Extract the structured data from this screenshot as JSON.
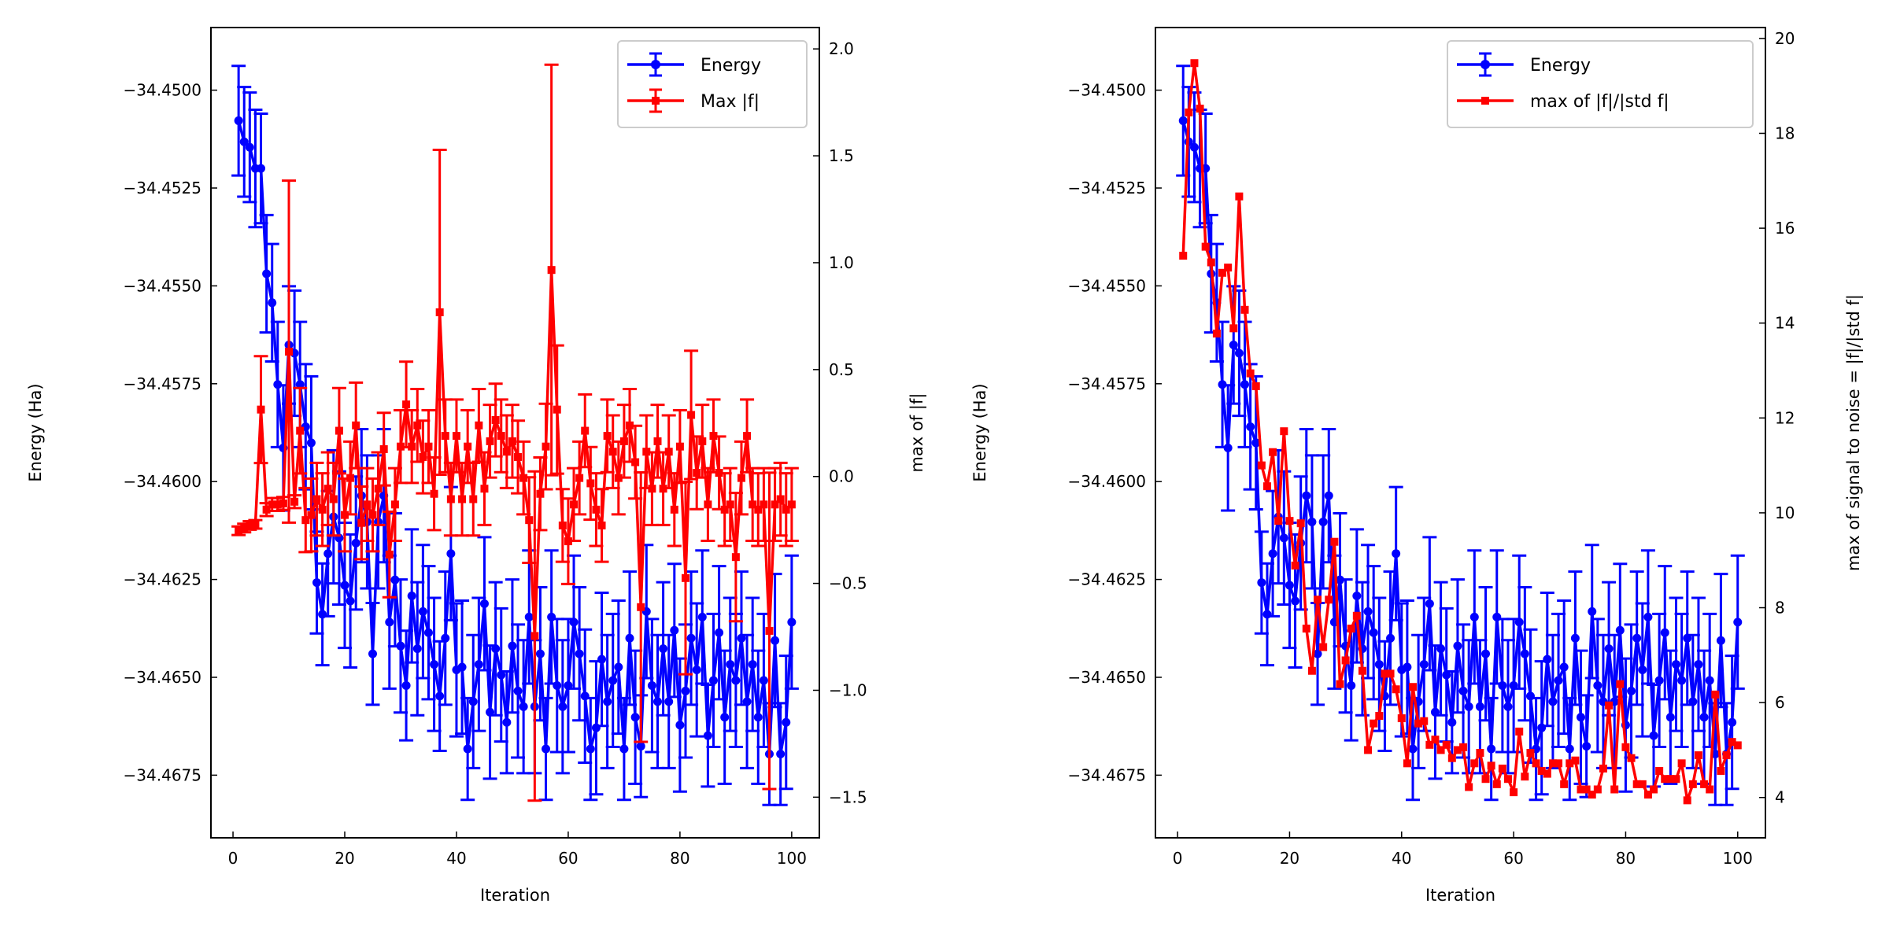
{
  "colors": {
    "energy": "#0000ff",
    "force": "#ff0000"
  },
  "chart_data": [
    {
      "type": "line",
      "panel": "left",
      "xlabel": "Iteration",
      "ylabel": "Energy (Ha)",
      "ylabel_right": "max of |f|",
      "xlim": [
        -3.95,
        104.95
      ],
      "ylim": [
        -34.4691,
        -34.4484
      ],
      "ylim_right": [
        -1.69,
        2.1
      ],
      "xticks": [
        0,
        20,
        40,
        60,
        80,
        100
      ],
      "xtick_labels": [
        "0",
        "20",
        "40",
        "60",
        "80",
        "100"
      ],
      "yticks": [
        -34.45,
        -34.4525,
        -34.455,
        -34.4575,
        -34.46,
        -34.4625,
        -34.465,
        -34.4675
      ],
      "ytick_labels": [
        "−34.4500",
        "−34.4525",
        "−34.4550",
        "−34.4575",
        "−34.4600",
        "−34.4625",
        "−34.4650",
        "−34.4675"
      ],
      "yticks_right": [
        2.0,
        1.5,
        1.0,
        0.5,
        0.0,
        -0.5,
        -1.0,
        -1.5
      ],
      "ytick_labels_right": [
        "2.0",
        "1.5",
        "1.0",
        "0.5",
        "0.0",
        "−0.5",
        "−1.0",
        "−1.5"
      ],
      "legend": {
        "placement": "top-right",
        "entries": [
          "Energy",
          "Max |f|"
        ]
      },
      "grid": false,
      "series": [
        {
          "name": "Energy",
          "axis": "left",
          "marker": "circle",
          "errorbars": true,
          "color_key": "energy",
          "y": [
            -34.45078,
            -34.45132,
            -34.45146,
            -34.452,
            -34.452,
            -34.45469,
            -34.45543,
            -34.45752,
            -34.45914,
            -34.45651,
            -34.45672,
            -34.45752,
            -34.4586,
            -34.45901,
            -34.46258,
            -34.46339,
            -34.46184,
            -34.4609,
            -34.46144,
            -34.46265,
            -34.46305,
            -34.46157,
            -34.46036,
            -34.46103,
            -34.4644,
            -34.46103,
            -34.46036,
            -34.46359,
            -34.46251,
            -34.4642,
            -34.46521,
            -34.46292,
            -34.46427,
            -34.46332,
            -34.46386,
            -34.46467,
            -34.46548,
            -34.464,
            -34.46184,
            -34.46481,
            -34.46474,
            -34.46683,
            -34.46562,
            -34.46467,
            -34.46312,
            -34.46589,
            -34.46427,
            -34.46494,
            -34.46615,
            -34.4642,
            -34.46535,
            -34.46575,
            -34.46346,
            -34.46575,
            -34.4644,
            -34.46683,
            -34.46346,
            -34.46521,
            -34.46575,
            -34.46521,
            -34.46359,
            -34.4644,
            -34.46548,
            -34.46683,
            -34.46629,
            -34.46454,
            -34.46562,
            -34.46508,
            -34.46474,
            -34.46683,
            -34.464,
            -34.46602,
            -34.46676,
            -34.46332,
            -34.46521,
            -34.46562,
            -34.46427,
            -34.46562,
            -34.4638,
            -34.46622,
            -34.46535,
            -34.464,
            -34.46481,
            -34.46346,
            -34.46649,
            -34.46508,
            -34.46386,
            -34.46602,
            -34.46467,
            -34.46508,
            -34.464,
            -34.46562,
            -34.46467,
            -34.46602,
            -34.46508,
            -34.46696,
            -34.46406,
            -34.46696,
            -34.46615,
            -34.46359
          ],
          "yerr": [
            0.0014,
            0.0014,
            0.0014,
            0.0015,
            0.0014,
            0.0015,
            0.0015,
            0.0016,
            0.0016,
            0.0015,
            0.0016,
            0.0016,
            0.0016,
            0.0017,
            0.0013,
            0.0013,
            0.0016,
            0.0017,
            0.0017,
            0.0016,
            0.0017,
            0.0017,
            0.0017,
            0.0017,
            0.0013,
            0.0017,
            0.0017,
            0.0017,
            0.0017,
            0.0017,
            0.0014,
            0.0017,
            0.0017,
            0.0017,
            0.0017,
            0.0017,
            0.0014,
            0.0017,
            0.0017,
            0.0017,
            0.0017,
            0.0013,
            0.0017,
            0.0017,
            0.0017,
            0.0017,
            0.0017,
            0.0017,
            0.0013,
            0.0017,
            0.0017,
            0.0017,
            0.0017,
            0.0017,
            0.0017,
            0.0013,
            0.0017,
            0.0017,
            0.0017,
            0.0017,
            0.0017,
            0.0017,
            0.0017,
            0.0013,
            0.0017,
            0.0017,
            0.0017,
            0.0017,
            0.0017,
            0.0013,
            0.0017,
            0.0017,
            0.0013,
            0.0017,
            0.0017,
            0.0017,
            0.0017,
            0.0017,
            0.0017,
            0.0017,
            0.0017,
            0.0017,
            0.0017,
            0.0017,
            0.0013,
            0.0017,
            0.0017,
            0.0017,
            0.0017,
            0.0017,
            0.0017,
            0.0017,
            0.0017,
            0.0017,
            0.0017,
            0.0013,
            0.0017,
            0.0013,
            0.0017,
            0.0017
          ]
        },
        {
          "name": "Max |f|",
          "axis": "right",
          "marker": "square",
          "errorbars": true,
          "color_key": "force",
          "y": [
            -0.254,
            -0.241,
            -0.229,
            -0.224,
            0.313,
            -0.155,
            -0.131,
            -0.131,
            -0.126,
            0.584,
            -0.118,
            0.214,
            -0.204,
            -0.18,
            -0.106,
            -0.155,
            -0.057,
            -0.106,
            0.214,
            -0.18,
            -0.007,
            0.239,
            -0.217,
            -0.131,
            -0.18,
            -0.057,
            0.128,
            -0.365,
            -0.131,
            0.14,
            0.337,
            0.14,
            0.239,
            0.091,
            0.14,
            -0.081,
            0.768,
            0.19,
            -0.106,
            0.19,
            -0.106,
            0.14,
            -0.106,
            0.239,
            -0.057,
            0.165,
            0.264,
            0.19,
            0.116,
            0.165,
            0.091,
            -0.007,
            -0.204,
            -0.746,
            -0.081,
            0.14,
            0.966,
            0.313,
            -0.229,
            -0.303,
            -0.131,
            -0.007,
            0.214,
            -0.032,
            -0.155,
            -0.229,
            0.19,
            0.116,
            -0.007,
            0.165,
            0.239,
            0.067,
            -0.611,
            0.116,
            -0.057,
            0.165,
            -0.057,
            0.116,
            -0.155,
            0.14,
            -0.475,
            0.288,
            0.017,
            0.165,
            -0.131,
            0.19,
            0.017,
            -0.155,
            -0.131,
            -0.377,
            -0.007,
            0.19,
            -0.131,
            -0.155,
            -0.131,
            -0.722,
            -0.131,
            -0.106,
            -0.155,
            -0.131
          ],
          "yerr": [
            0.02,
            0.02,
            0.02,
            0.02,
            0.25,
            0.03,
            0.03,
            0.03,
            0.03,
            0.8,
            0.03,
            0.2,
            0.15,
            0.17,
            0.17,
            0.17,
            0.17,
            0.17,
            0.2,
            0.17,
            0.17,
            0.2,
            0.17,
            0.17,
            0.17,
            0.17,
            0.17,
            0.2,
            0.17,
            0.17,
            0.2,
            0.17,
            0.17,
            0.17,
            0.17,
            0.17,
            0.76,
            0.17,
            0.17,
            0.17,
            0.17,
            0.17,
            0.17,
            0.17,
            0.17,
            0.17,
            0.17,
            0.17,
            0.17,
            0.17,
            0.17,
            0.17,
            0.2,
            0.77,
            0.17,
            0.2,
            0.96,
            0.3,
            0.17,
            0.2,
            0.17,
            0.17,
            0.17,
            0.17,
            0.17,
            0.17,
            0.17,
            0.17,
            0.17,
            0.17,
            0.17,
            0.17,
            0.63,
            0.17,
            0.17,
            0.17,
            0.17,
            0.17,
            0.17,
            0.17,
            0.45,
            0.3,
            0.17,
            0.17,
            0.17,
            0.17,
            0.17,
            0.17,
            0.17,
            0.3,
            0.17,
            0.17,
            0.17,
            0.17,
            0.17,
            0.74,
            0.17,
            0.17,
            0.17,
            0.17
          ]
        }
      ]
    },
    {
      "type": "line",
      "panel": "right",
      "xlabel": "Iteration",
      "ylabel": "Energy (Ha)",
      "ylabel_right": "max of signal to noise = |f|/|std f|",
      "xlim": [
        -3.95,
        104.95
      ],
      "ylim": [
        -34.4691,
        -34.4484
      ],
      "ylim_right": [
        3.15,
        20.23
      ],
      "xticks": [
        0,
        20,
        40,
        60,
        80,
        100
      ],
      "xtick_labels": [
        "0",
        "20",
        "40",
        "60",
        "80",
        "100"
      ],
      "yticks": [
        -34.45,
        -34.4525,
        -34.455,
        -34.4575,
        -34.46,
        -34.4625,
        -34.465,
        -34.4675
      ],
      "ytick_labels": [
        "−34.4500",
        "−34.4525",
        "−34.4550",
        "−34.4575",
        "−34.4600",
        "−34.4625",
        "−34.4650",
        "−34.4675"
      ],
      "yticks_right": [
        20,
        18,
        16,
        14,
        12,
        10,
        8,
        6,
        4
      ],
      "ytick_labels_right": [
        "20",
        "18",
        "16",
        "14",
        "12",
        "10",
        "8",
        "6",
        "4"
      ],
      "legend": {
        "placement": "top-right",
        "entries": [
          "Energy",
          "max of |f|/|std f|"
        ]
      },
      "grid": false,
      "series": [
        {
          "name": "Energy",
          "axis": "left",
          "marker": "circle",
          "errorbars": true,
          "color_key": "energy",
          "same_as": "left panel Energy"
        },
        {
          "name": "max of |f|/|std f|",
          "axis": "right",
          "marker": "square",
          "errorbars": false,
          "color_key": "force",
          "y": [
            15.42,
            18.44,
            19.48,
            18.52,
            15.61,
            15.28,
            13.78,
            15.06,
            15.17,
            13.89,
            16.67,
            14.28,
            12.94,
            12.67,
            11.0,
            10.56,
            11.28,
            9.83,
            11.72,
            9.83,
            8.89,
            9.78,
            7.56,
            6.67,
            8.17,
            7.17,
            8.17,
            9.39,
            6.39,
            6.89,
            7.56,
            7.83,
            6.67,
            5.0,
            5.56,
            5.72,
            6.61,
            6.61,
            6.28,
            5.67,
            4.72,
            6.33,
            5.56,
            5.61,
            5.11,
            5.22,
            5.0,
            5.11,
            4.83,
            5.0,
            5.06,
            4.22,
            4.72,
            4.94,
            4.39,
            4.67,
            4.28,
            4.61,
            4.39,
            4.11,
            5.39,
            4.44,
            4.94,
            4.72,
            4.56,
            4.5,
            4.72,
            4.72,
            4.28,
            4.72,
            4.78,
            4.17,
            4.17,
            4.06,
            4.17,
            4.61,
            5.94,
            4.17,
            6.39,
            5.06,
            4.83,
            4.28,
            4.28,
            4.06,
            4.17,
            4.56,
            4.39,
            4.39,
            4.39,
            4.72,
            3.94,
            4.28,
            4.89,
            4.28,
            4.17,
            6.17,
            4.56,
            4.89,
            5.17,
            5.1
          ]
        }
      ]
    }
  ]
}
